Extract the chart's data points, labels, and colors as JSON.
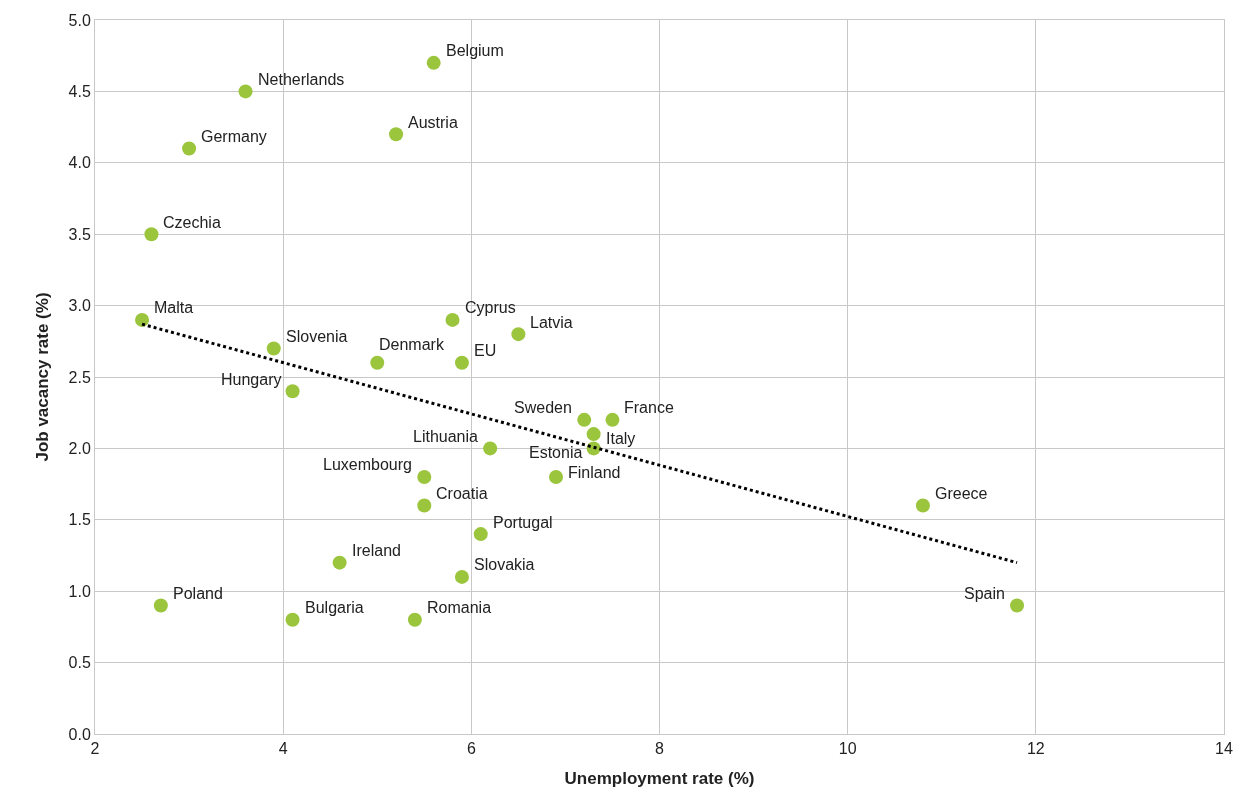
{
  "chart_data": {
    "type": "scatter",
    "xlabel": "Unemployment rate (%)",
    "ylabel": "Job vacancy rate (%)",
    "xlim": [
      2,
      14
    ],
    "xticks": [
      2,
      4,
      6,
      8,
      10,
      12,
      14
    ],
    "ylim": [
      0,
      5
    ],
    "yticks": [
      {
        "value": 0,
        "label": "0.0"
      },
      {
        "value": 0.5,
        "label": "0.5"
      },
      {
        "value": 1,
        "label": "1.0"
      },
      {
        "value": 1.5,
        "label": "1.5"
      },
      {
        "value": 2,
        "label": "2.0"
      },
      {
        "value": 2.5,
        "label": "2.5"
      },
      {
        "value": 3,
        "label": "3.0"
      },
      {
        "value": 3.5,
        "label": "3.5"
      },
      {
        "value": 4,
        "label": "4.0"
      },
      {
        "value": 4.5,
        "label": "4.5"
      },
      {
        "value": 5,
        "label": "5.0"
      }
    ],
    "grid": true,
    "marker": "circle",
    "series": [
      {
        "color": "#9bc53d",
        "x": [
          5.6,
          3.6,
          5.2,
          3.0,
          2.6,
          2.5,
          5.8,
          6.5,
          3.9,
          5.0,
          5.9,
          4.1,
          7.2,
          7.5,
          7.3,
          7.3,
          6.2,
          5.5,
          6.9,
          5.5,
          10.8,
          6.1,
          4.6,
          5.9,
          2.7,
          11.8,
          4.1,
          5.4
        ],
        "values": [
          4.7,
          4.5,
          4.2,
          4.1,
          3.5,
          2.9,
          2.9,
          2.8,
          2.7,
          2.6,
          2.6,
          2.4,
          2.2,
          2.2,
          2.1,
          2.0,
          2.0,
          1.8,
          1.8,
          1.6,
          1.6,
          1.4,
          1.2,
          1.1,
          0.9,
          0.9,
          0.8,
          0.8
        ]
      },
      {
        "type": "line",
        "color": "#000000",
        "line_style": "dotted",
        "marker": "none",
        "x": [
          2.5,
          11.8
        ],
        "values": [
          2.87,
          1.2
        ]
      }
    ],
    "annotations": [
      {
        "text": "Belgium",
        "x": 5.6,
        "y": 4.7
      },
      {
        "text": "Netherlands",
        "x": 3.6,
        "y": 4.5
      },
      {
        "text": "Austria",
        "x": 5.2,
        "y": 4.2
      },
      {
        "text": "Germany",
        "x": 3.0,
        "y": 4.1
      },
      {
        "text": "Czechia",
        "x": 2.6,
        "y": 3.5
      },
      {
        "text": "Malta",
        "x": 2.5,
        "y": 2.9
      },
      {
        "text": "Cyprus",
        "x": 5.8,
        "y": 2.9
      },
      {
        "text": "Latvia",
        "x": 6.5,
        "y": 2.8
      },
      {
        "text": "Slovenia",
        "x": 3.9,
        "y": 2.7
      },
      {
        "text": "Denmark",
        "x": 5.0,
        "y": 2.6
      },
      {
        "text": "EU",
        "x": 5.9,
        "y": 2.6
      },
      {
        "text": "Hungary",
        "x": 4.1,
        "y": 2.4
      },
      {
        "text": "Sweden",
        "x": 7.2,
        "y": 2.2
      },
      {
        "text": "France",
        "x": 7.5,
        "y": 2.2
      },
      {
        "text": "Italy",
        "x": 7.3,
        "y": 2.1
      },
      {
        "text": "Estonia",
        "x": 7.3,
        "y": 2.0
      },
      {
        "text": "Lithuania",
        "x": 6.2,
        "y": 2.0
      },
      {
        "text": "Luxembourg",
        "x": 5.5,
        "y": 1.8
      },
      {
        "text": "Finland",
        "x": 6.9,
        "y": 1.8
      },
      {
        "text": "Croatia",
        "x": 5.5,
        "y": 1.6
      },
      {
        "text": "Greece",
        "x": 10.8,
        "y": 1.6
      },
      {
        "text": "Portugal",
        "x": 6.1,
        "y": 1.4
      },
      {
        "text": "Ireland",
        "x": 4.6,
        "y": 1.2
      },
      {
        "text": "Slovakia",
        "x": 5.9,
        "y": 1.1
      },
      {
        "text": "Poland",
        "x": 2.7,
        "y": 0.9
      },
      {
        "text": "Spain",
        "x": 11.8,
        "y": 0.9
      },
      {
        "text": "Bulgaria",
        "x": 4.1,
        "y": 0.8
      },
      {
        "text": "Romania",
        "x": 5.4,
        "y": 0.8
      }
    ]
  }
}
